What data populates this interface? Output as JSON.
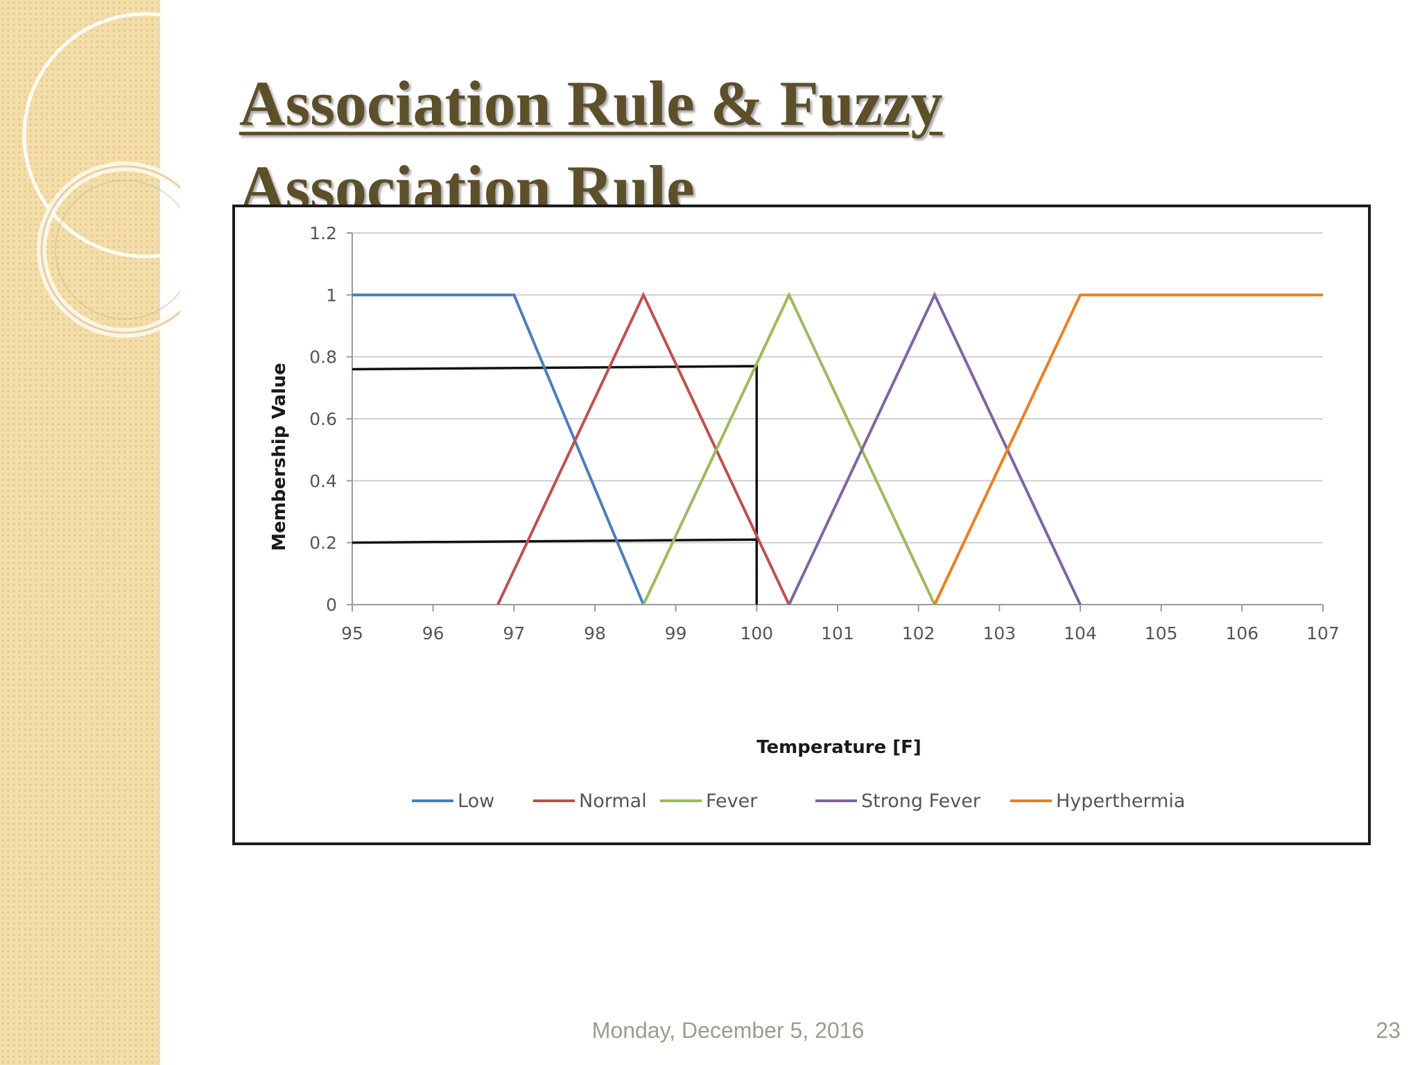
{
  "slide": {
    "title_line1": "Association Rule & Fuzzy",
    "title_line2": "Association Rule",
    "footer_date": "Monday, December 5, 2016",
    "page_number": "23"
  },
  "colors": {
    "strip": "#f3deaa",
    "title": "#5c4f2a",
    "footer": "#9d9d88"
  },
  "chart_data": {
    "type": "line",
    "title": "",
    "xlabel": "Temperature [F]",
    "ylabel": "Membership Value",
    "xlim": [
      95,
      107
    ],
    "ylim": [
      0,
      1.2
    ],
    "x_ticks": [
      "95",
      "96",
      "97",
      "98",
      "99",
      "100",
      "101",
      "102",
      "103",
      "104",
      "105",
      "106",
      "107"
    ],
    "y_ticks": [
      "0",
      "0.2",
      "0.4",
      "0.6",
      "0.8",
      "1",
      "1.2"
    ],
    "grid": true,
    "legend_position": "bottom",
    "series": [
      {
        "name": "Low",
        "color": "#4a7ebf",
        "points": [
          [
            95,
            1
          ],
          [
            97,
            1
          ],
          [
            98.6,
            0
          ]
        ]
      },
      {
        "name": "Normal",
        "color": "#c0504d",
        "points": [
          [
            96.8,
            0
          ],
          [
            98.6,
            1
          ],
          [
            100.4,
            0
          ]
        ]
      },
      {
        "name": "Fever",
        "color": "#9bbb59",
        "points": [
          [
            98.6,
            0
          ],
          [
            100.4,
            1
          ],
          [
            102.2,
            0
          ]
        ]
      },
      {
        "name": "Strong Fever",
        "color": "#8064a2",
        "points": [
          [
            100.4,
            0
          ],
          [
            102.2,
            1
          ],
          [
            104,
            0
          ]
        ]
      },
      {
        "name": "Hyperthermia",
        "color": "#f07d1e",
        "points": [
          [
            102.2,
            0
          ],
          [
            104,
            1
          ],
          [
            107,
            1
          ]
        ]
      }
    ],
    "annotations": [
      {
        "color": "#111111",
        "points": [
          [
            95,
            0.76
          ],
          [
            100,
            0.77
          ],
          [
            100,
            0
          ]
        ]
      },
      {
        "color": "#111111",
        "points": [
          [
            95,
            0.2
          ],
          [
            100,
            0.21
          ]
        ]
      }
    ]
  }
}
